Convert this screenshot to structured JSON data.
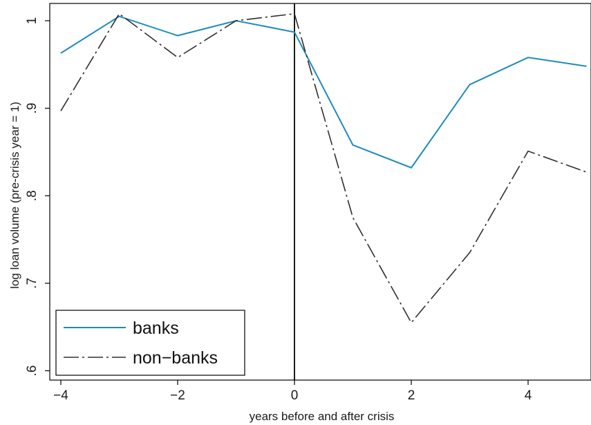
{
  "chart_data": {
    "type": "line",
    "xlabel": "years before and after crisis",
    "ylabel": "log loan volume (pre-crisis year = 1)",
    "xlim": [
      -4,
      5
    ],
    "ylim": [
      0.59,
      1.02
    ],
    "x_ticks": [
      -4,
      -2,
      0,
      2,
      4
    ],
    "x_tick_labels": [
      "−4",
      "−2",
      "0",
      "2",
      "4"
    ],
    "y_ticks": [
      0.6,
      0.7,
      0.8,
      0.9,
      1
    ],
    "y_tick_labels": [
      ".6",
      ".7",
      ".8",
      ".9",
      "1"
    ],
    "reference_line_x": 0,
    "grid": false,
    "legend_position": "bottom-left",
    "x": [
      -4,
      -3,
      -2,
      -1,
      0,
      1,
      2,
      3,
      4,
      5
    ],
    "series": [
      {
        "name": "banks",
        "color": "#1b8bbd",
        "line_style": "solid",
        "values": [
          0.963,
          1.005,
          0.983,
          1.0,
          0.987,
          0.858,
          0.832,
          0.927,
          0.958,
          0.948
        ]
      },
      {
        "name": "non−banks",
        "color": "#2e2e2e",
        "line_style": "dash-dot",
        "values": [
          0.897,
          1.008,
          0.958,
          1.0,
          1.008,
          0.775,
          0.655,
          0.735,
          0.851,
          0.827
        ]
      }
    ]
  }
}
